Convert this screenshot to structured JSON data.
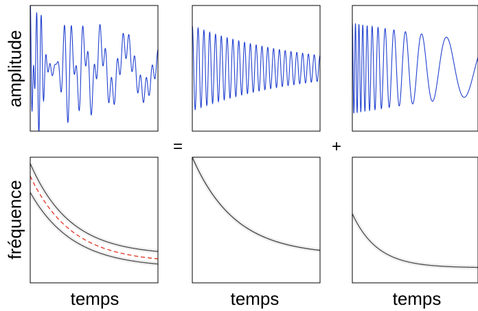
{
  "chart_data": [
    {
      "type": "line",
      "title": "",
      "xlabel": "",
      "ylabel": "amplitude",
      "series": [
        {
          "components": [
            "chirp",
            "decaying-sine-high-freq",
            "decaying-chirp-low-freq"
          ],
          "color": "#1f3fcf"
        }
      ]
    },
    {
      "type": "line",
      "xlabel": "",
      "ylabel": "",
      "series": [
        {
          "color": "#1f3fcf"
        }
      ]
    },
    {
      "type": "line",
      "xlabel": "",
      "ylabel": "",
      "series": [
        {
          "color": "#1f3fcf"
        }
      ]
    },
    {
      "type": "heatmap",
      "xlabel": "temps",
      "ylabel": "fréquence",
      "overlay_line_color": "#e0301c"
    },
    {
      "type": "heatmap",
      "xlabel": "temps",
      "ylabel": ""
    },
    {
      "type": "heatmap",
      "xlabel": "temps",
      "ylabel": ""
    }
  ],
  "labels": {
    "amplitude": "amplitude",
    "frequence": "fréquence",
    "temps": "temps",
    "equals": "=",
    "plus": "+"
  },
  "colors": {
    "signal": "#1f3fcf",
    "spectrogram": "#222222",
    "ridge": "#e0301c"
  }
}
